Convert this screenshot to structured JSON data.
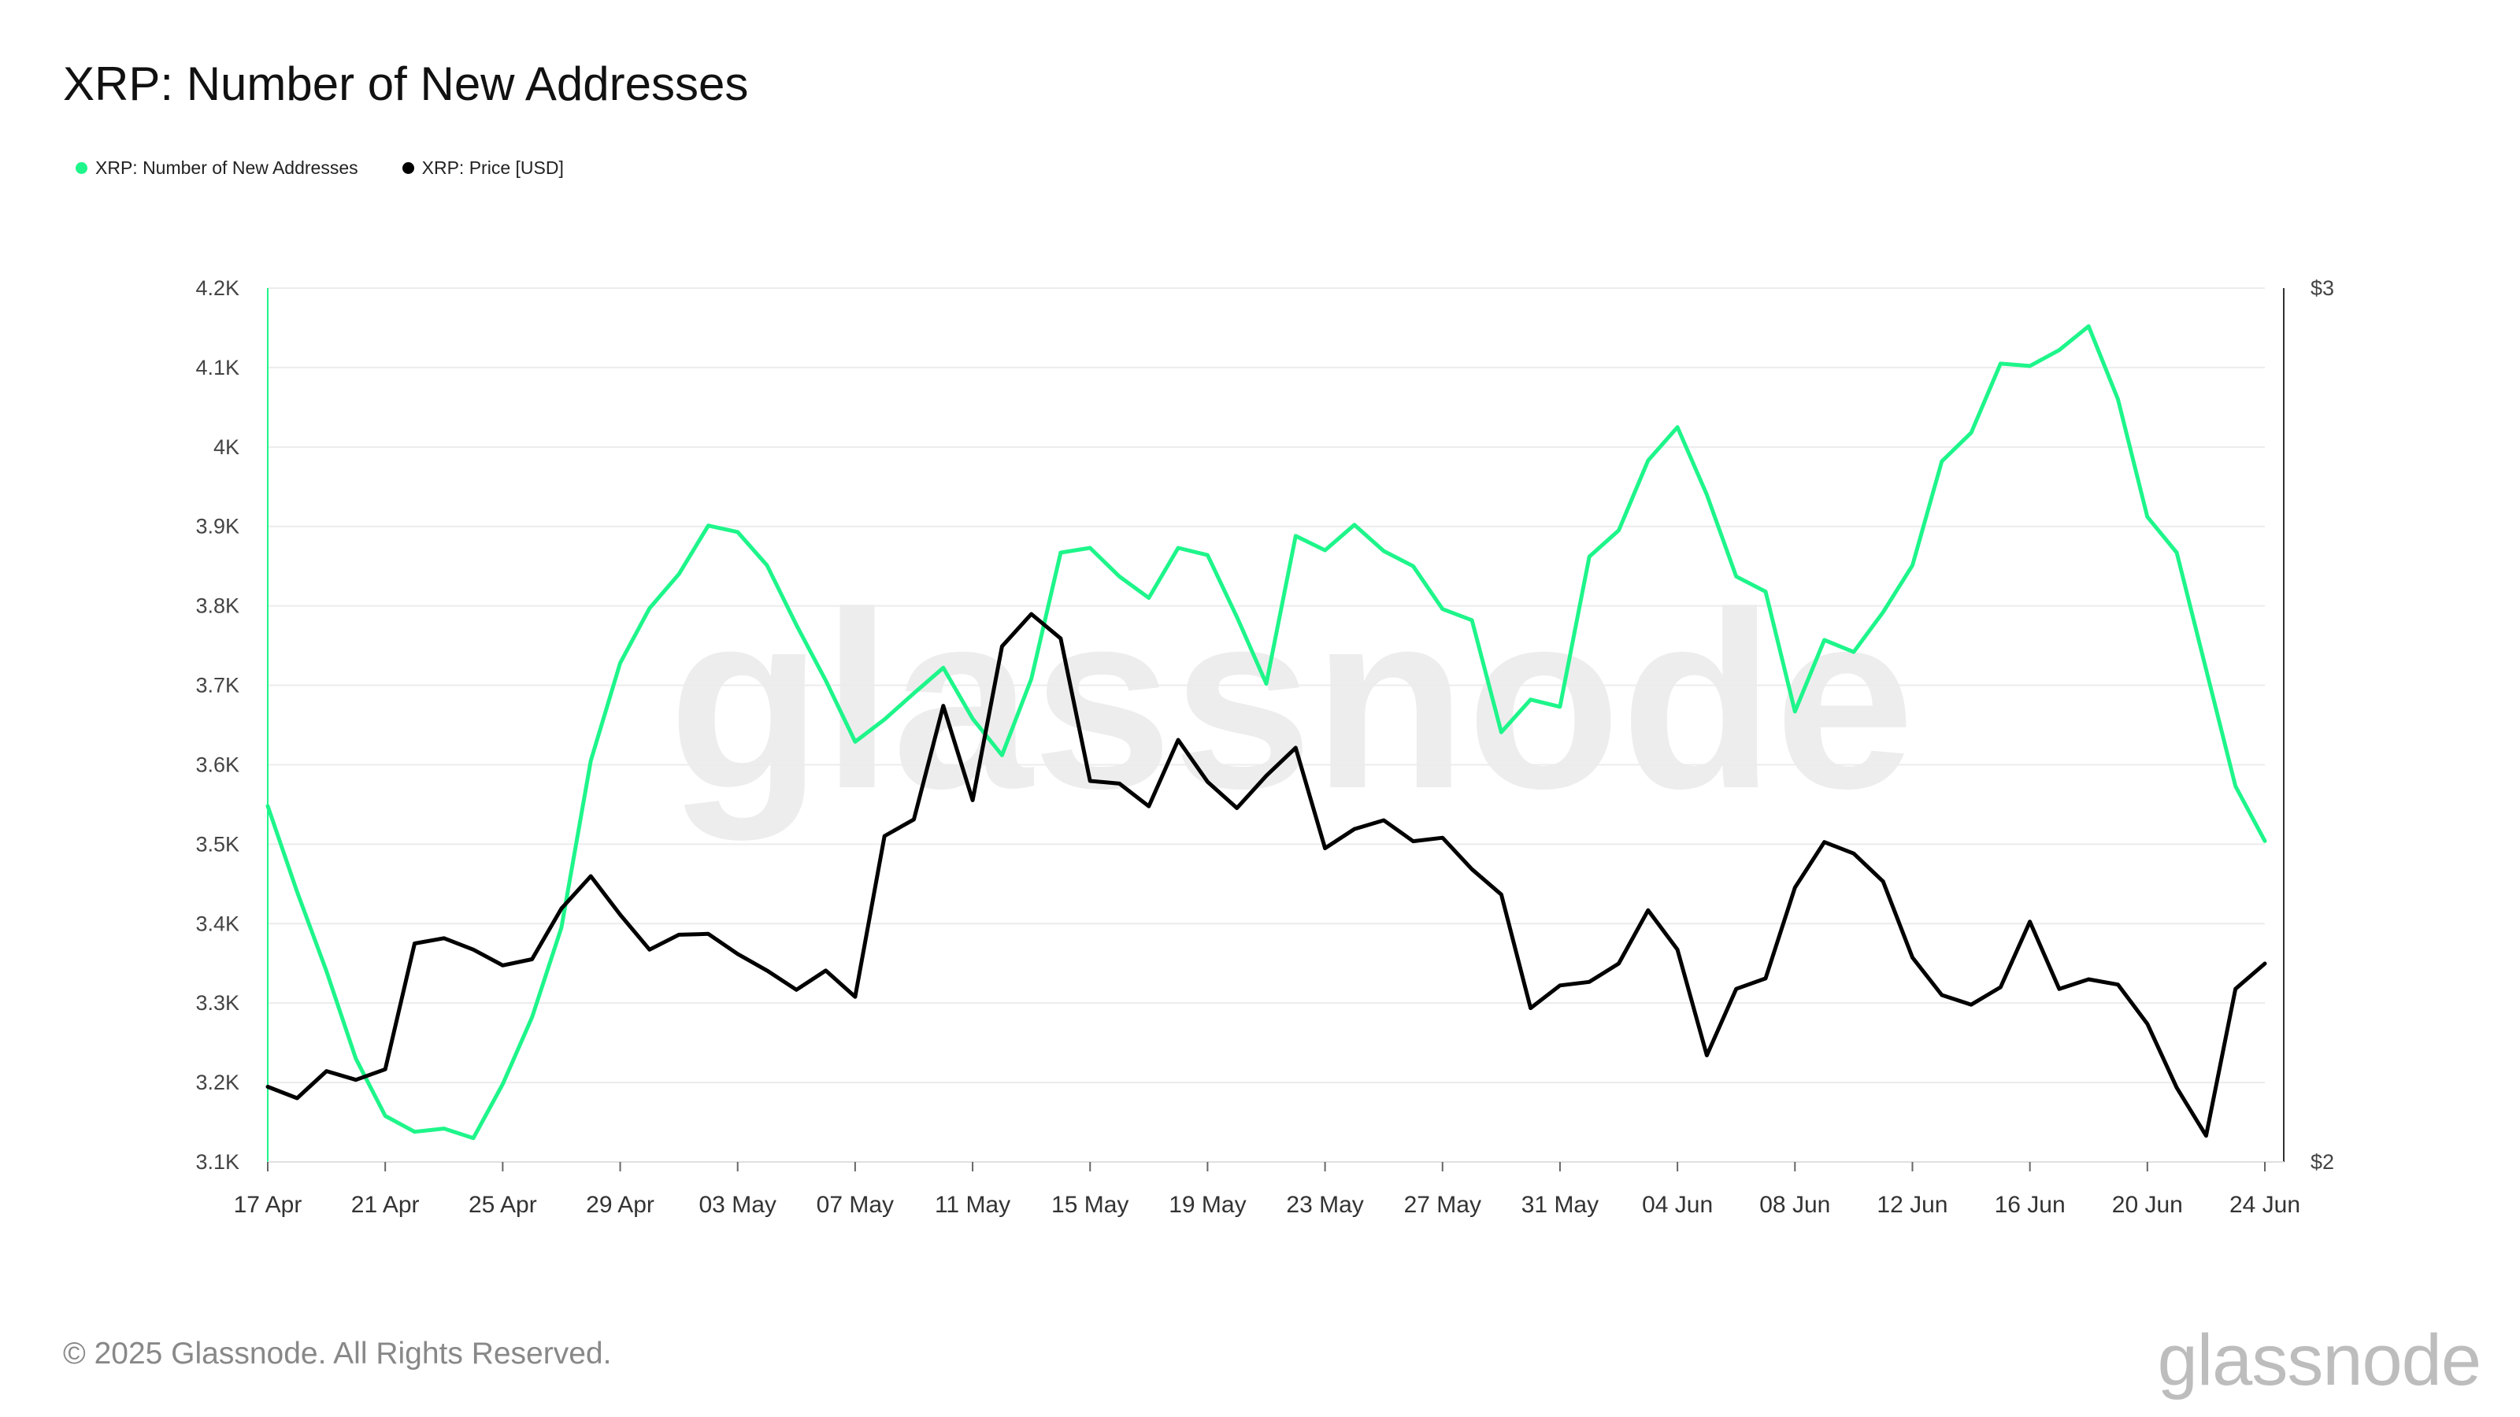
{
  "title": "XRP: Number of New Addresses",
  "legend": [
    {
      "label": "XRP: Number of New Addresses",
      "color": "#1ef58a"
    },
    {
      "label": "XRP: Price [USD]",
      "color": "#000000"
    }
  ],
  "copyright": "© 2025 Glassnode. All Rights Reserved.",
  "brand": "glassnode",
  "watermark": "glassnode",
  "chart_data": {
    "type": "line",
    "x_start": "2025-04-17",
    "x_tick_labels": [
      "17 Apr",
      "21 Apr",
      "25 Apr",
      "29 Apr",
      "03 May",
      "07 May",
      "11 May",
      "15 May",
      "19 May",
      "23 May",
      "27 May",
      "31 May",
      "04 Jun",
      "08 Jun",
      "12 Jun",
      "16 Jun",
      "20 Jun",
      "24 Jun"
    ],
    "y_left": {
      "ticks": [
        "3.1K",
        "3.2K",
        "3.3K",
        "3.4K",
        "3.5K",
        "3.6K",
        "3.7K",
        "3.8K",
        "3.9K",
        "4K",
        "4.1K",
        "4.2K"
      ],
      "range": [
        3100,
        4200
      ]
    },
    "y_right": {
      "ticks": [
        "$2",
        "$3"
      ],
      "range": [
        2,
        3
      ]
    },
    "grid": true,
    "legend_position": "top-left",
    "series": [
      {
        "name": "XRP: Number of New Addresses",
        "axis": "left",
        "color": "#1ef58a",
        "values": [
          3548,
          3440,
          3340,
          3230,
          3158,
          3138,
          3142,
          3130,
          3198,
          3282,
          3395,
          3605,
          3728,
          3797,
          3840,
          3901,
          3893,
          3851,
          3776,
          3706,
          3629,
          3657,
          3690,
          3722,
          3658,
          3612,
          3708,
          3867,
          3873,
          3837,
          3810,
          3873,
          3864,
          3786,
          3702,
          3888,
          3870,
          3902,
          3869,
          3850,
          3796,
          3782,
          3641,
          3682,
          3673,
          3862,
          3895,
          3983,
          4025,
          3940,
          3837,
          3818,
          3667,
          3757,
          3742,
          3792,
          3851,
          3982,
          4018,
          4105,
          4102,
          4122,
          4152,
          4060,
          3912,
          3867,
          3720,
          3573,
          3504
        ]
      },
      {
        "name": "XRP: Price [USD]",
        "axis": "right",
        "color": "#000000",
        "values": [
          2.086,
          2.073,
          2.104,
          2.094,
          2.106,
          2.25,
          2.256,
          2.243,
          2.225,
          2.232,
          2.29,
          2.327,
          2.283,
          2.243,
          2.26,
          2.261,
          2.238,
          2.219,
          2.197,
          2.219,
          2.189,
          2.373,
          2.392,
          2.522,
          2.414,
          2.59,
          2.627,
          2.599,
          2.436,
          2.433,
          2.407,
          2.483,
          2.435,
          2.405,
          2.442,
          2.474,
          2.359,
          2.381,
          2.391,
          2.367,
          2.371,
          2.335,
          2.306,
          2.176,
          2.202,
          2.206,
          2.227,
          2.288,
          2.243,
          2.122,
          2.198,
          2.21,
          2.314,
          2.366,
          2.353,
          2.321,
          2.234,
          2.191,
          2.18,
          2.2,
          2.275,
          2.198,
          2.209,
          2.203,
          2.158,
          2.085,
          2.03,
          2.198,
          2.227
        ]
      }
    ]
  }
}
